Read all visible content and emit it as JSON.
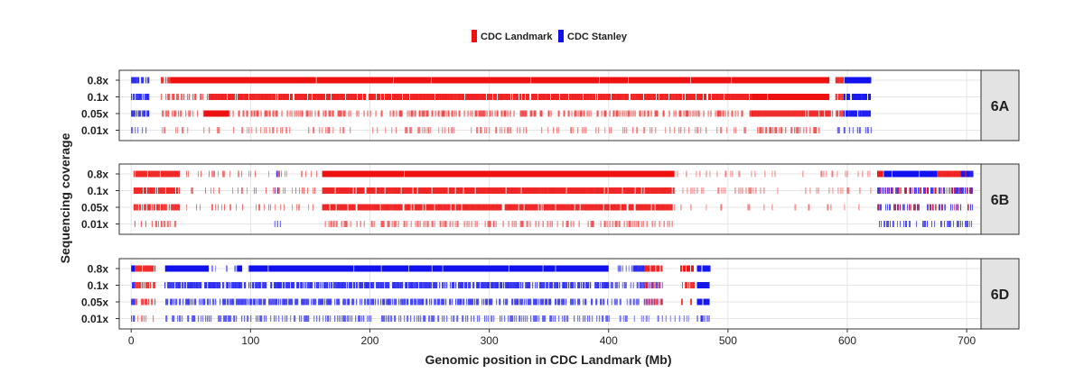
{
  "chart_data": {
    "type": "strip",
    "legend": [
      {
        "name": "CDC Landmark",
        "color": "#ee1111"
      },
      {
        "name": "CDC Stanley",
        "color": "#1111ee"
      }
    ],
    "legend_position": "top-center",
    "xlabel": "Genomic position in CDC Landmark (Mb)",
    "ylabel": "Sequencing coverage",
    "xlim": [
      -10,
      712
    ],
    "x_ticks": [
      0,
      100,
      200,
      300,
      400,
      500,
      600,
      700
    ],
    "y_categories": [
      "0.8x",
      "0.1x",
      "0.05x",
      "0.01x"
    ],
    "grid": true,
    "panels": [
      {
        "label": "6A",
        "tracks": [
          {
            "coverage": "0.8x",
            "segments": [
              {
                "start": 0,
                "end": 15,
                "group": "CDC Stanley",
                "density": 0.8
              },
              {
                "start": 25,
                "end": 33,
                "group": "CDC Landmark",
                "density": 0.8
              },
              {
                "start": 33,
                "end": 585,
                "group": "CDC Landmark",
                "density": 1.0
              },
              {
                "start": 590,
                "end": 597,
                "group": "CDC Landmark",
                "density": 0.9
              },
              {
                "start": 597,
                "end": 620,
                "group": "CDC Stanley",
                "density": 1.0
              }
            ]
          },
          {
            "coverage": "0.1x",
            "segments": [
              {
                "start": 0,
                "end": 15,
                "group": "CDC Stanley",
                "density": 0.8
              },
              {
                "start": 25,
                "end": 65,
                "group": "CDC Landmark",
                "density": 0.5
              },
              {
                "start": 65,
                "end": 520,
                "group": "CDC Landmark",
                "density": 0.9
              },
              {
                "start": 520,
                "end": 585,
                "group": "CDC Landmark",
                "density": 1.0
              },
              {
                "start": 590,
                "end": 597,
                "group": "CDC Landmark",
                "density": 0.8
              },
              {
                "start": 597,
                "end": 620,
                "group": "CDC Stanley",
                "density": 0.9
              }
            ]
          },
          {
            "coverage": "0.05x",
            "segments": [
              {
                "start": 0,
                "end": 15,
                "group": "CDC Stanley",
                "density": 0.7
              },
              {
                "start": 25,
                "end": 60,
                "group": "CDC Landmark",
                "density": 0.35
              },
              {
                "start": 60,
                "end": 82,
                "group": "CDC Landmark",
                "density": 1.0
              },
              {
                "start": 82,
                "end": 520,
                "group": "CDC Landmark",
                "density": 0.45
              },
              {
                "start": 520,
                "end": 585,
                "group": "CDC Landmark",
                "density": 0.95
              },
              {
                "start": 585,
                "end": 597,
                "group": "CDC Landmark",
                "density": 0.6
              },
              {
                "start": 597,
                "end": 620,
                "group": "CDC Stanley",
                "density": 0.8
              }
            ]
          },
          {
            "coverage": "0.01x",
            "segments": [
              {
                "start": 0,
                "end": 15,
                "group": "CDC Stanley",
                "density": 0.4
              },
              {
                "start": 25,
                "end": 520,
                "group": "CDC Landmark",
                "density": 0.2
              },
              {
                "start": 520,
                "end": 585,
                "group": "CDC Landmark",
                "density": 0.45
              },
              {
                "start": 590,
                "end": 620,
                "group": "CDC Stanley",
                "density": 0.35
              }
            ]
          }
        ]
      },
      {
        "label": "6B",
        "tracks": [
          {
            "coverage": "0.8x",
            "segments": [
              {
                "start": 2,
                "end": 40,
                "group": "CDC Landmark",
                "density": 0.95
              },
              {
                "start": 40,
                "end": 160,
                "group": "CDC Landmark",
                "density": 0.15
              },
              {
                "start": 120,
                "end": 125,
                "group": "CDC Stanley",
                "density": 0.5
              },
              {
                "start": 160,
                "end": 455,
                "group": "CDC Landmark",
                "density": 1.0
              },
              {
                "start": 455,
                "end": 625,
                "group": "CDC Landmark",
                "density": 0.12
              },
              {
                "start": 625,
                "end": 630,
                "group": "CDC Landmark",
                "density": 0.9
              },
              {
                "start": 630,
                "end": 675,
                "group": "CDC Stanley",
                "density": 1.0
              },
              {
                "start": 675,
                "end": 702,
                "group": "CDC Landmark",
                "density": 0.95
              },
              {
                "start": 695,
                "end": 705,
                "group": "CDC Stanley",
                "density": 0.8
              }
            ]
          },
          {
            "coverage": "0.1x",
            "segments": [
              {
                "start": 2,
                "end": 40,
                "group": "CDC Landmark",
                "density": 0.85
              },
              {
                "start": 40,
                "end": 160,
                "group": "CDC Landmark",
                "density": 0.2
              },
              {
                "start": 120,
                "end": 125,
                "group": "CDC Stanley",
                "density": 0.5
              },
              {
                "start": 160,
                "end": 455,
                "group": "CDC Landmark",
                "density": 0.95
              },
              {
                "start": 455,
                "end": 625,
                "group": "CDC Landmark",
                "density": 0.15
              },
              {
                "start": 625,
                "end": 705,
                "group": "CDC Stanley",
                "density": 0.55
              },
              {
                "start": 625,
                "end": 705,
                "group": "CDC Landmark",
                "density": 0.3
              }
            ]
          },
          {
            "coverage": "0.05x",
            "segments": [
              {
                "start": 2,
                "end": 40,
                "group": "CDC Landmark",
                "density": 0.7
              },
              {
                "start": 40,
                "end": 160,
                "group": "CDC Landmark",
                "density": 0.15
              },
              {
                "start": 160,
                "end": 455,
                "group": "CDC Landmark",
                "density": 0.9
              },
              {
                "start": 455,
                "end": 625,
                "group": "CDC Landmark",
                "density": 0.1
              },
              {
                "start": 625,
                "end": 705,
                "group": "CDC Stanley",
                "density": 0.45
              },
              {
                "start": 625,
                "end": 705,
                "group": "CDC Landmark",
                "density": 0.25
              }
            ]
          },
          {
            "coverage": "0.01x",
            "segments": [
              {
                "start": 2,
                "end": 40,
                "group": "CDC Landmark",
                "density": 0.3
              },
              {
                "start": 120,
                "end": 125,
                "group": "CDC Stanley",
                "density": 0.4
              },
              {
                "start": 160,
                "end": 455,
                "group": "CDC Landmark",
                "density": 0.35
              },
              {
                "start": 625,
                "end": 705,
                "group": "CDC Stanley",
                "density": 0.4
              }
            ]
          }
        ]
      },
      {
        "label": "6D",
        "tracks": [
          {
            "coverage": "0.8x",
            "segments": [
              {
                "start": 0,
                "end": 3,
                "group": "CDC Stanley",
                "density": 1.0
              },
              {
                "start": 3,
                "end": 20,
                "group": "CDC Landmark",
                "density": 0.95
              },
              {
                "start": 28,
                "end": 65,
                "group": "CDC Stanley",
                "density": 1.0
              },
              {
                "start": 65,
                "end": 100,
                "group": "CDC Stanley",
                "density": 0.15
              },
              {
                "start": 88,
                "end": 93,
                "group": "CDC Stanley",
                "density": 1.0
              },
              {
                "start": 98,
                "end": 400,
                "group": "CDC Stanley",
                "density": 1.0
              },
              {
                "start": 400,
                "end": 420,
                "group": "CDC Stanley",
                "density": 0.2
              },
              {
                "start": 420,
                "end": 430,
                "group": "CDC Stanley",
                "density": 0.9
              },
              {
                "start": 430,
                "end": 445,
                "group": "CDC Landmark",
                "density": 0.95
              },
              {
                "start": 460,
                "end": 472,
                "group": "CDC Landmark",
                "density": 0.9
              },
              {
                "start": 474,
                "end": 485,
                "group": "CDC Stanley",
                "density": 0.95
              }
            ]
          },
          {
            "coverage": "0.1x",
            "segments": [
              {
                "start": 0,
                "end": 3,
                "group": "CDC Stanley",
                "density": 0.9
              },
              {
                "start": 3,
                "end": 20,
                "group": "CDC Landmark",
                "density": 0.7
              },
              {
                "start": 28,
                "end": 400,
                "group": "CDC Stanley",
                "density": 0.75
              },
              {
                "start": 400,
                "end": 445,
                "group": "CDC Stanley",
                "density": 0.45
              },
              {
                "start": 430,
                "end": 445,
                "group": "CDC Landmark",
                "density": 0.5
              },
              {
                "start": 460,
                "end": 472,
                "group": "CDC Landmark",
                "density": 0.6
              },
              {
                "start": 474,
                "end": 485,
                "group": "CDC Stanley",
                "density": 0.9
              }
            ]
          },
          {
            "coverage": "0.05x",
            "segments": [
              {
                "start": 0,
                "end": 3,
                "group": "CDC Stanley",
                "density": 0.8
              },
              {
                "start": 3,
                "end": 20,
                "group": "CDC Landmark",
                "density": 0.55
              },
              {
                "start": 28,
                "end": 400,
                "group": "CDC Stanley",
                "density": 0.6
              },
              {
                "start": 400,
                "end": 445,
                "group": "CDC Stanley",
                "density": 0.35
              },
              {
                "start": 430,
                "end": 445,
                "group": "CDC Landmark",
                "density": 0.4
              },
              {
                "start": 460,
                "end": 472,
                "group": "CDC Landmark",
                "density": 0.5
              },
              {
                "start": 474,
                "end": 485,
                "group": "CDC Stanley",
                "density": 0.9
              }
            ]
          },
          {
            "coverage": "0.01x",
            "segments": [
              {
                "start": 0,
                "end": 3,
                "group": "CDC Stanley",
                "density": 0.5
              },
              {
                "start": 3,
                "end": 20,
                "group": "CDC Landmark",
                "density": 0.25
              },
              {
                "start": 28,
                "end": 400,
                "group": "CDC Stanley",
                "density": 0.4
              },
              {
                "start": 400,
                "end": 470,
                "group": "CDC Stanley",
                "density": 0.2
              },
              {
                "start": 474,
                "end": 485,
                "group": "CDC Stanley",
                "density": 0.6
              }
            ]
          }
        ]
      }
    ]
  }
}
